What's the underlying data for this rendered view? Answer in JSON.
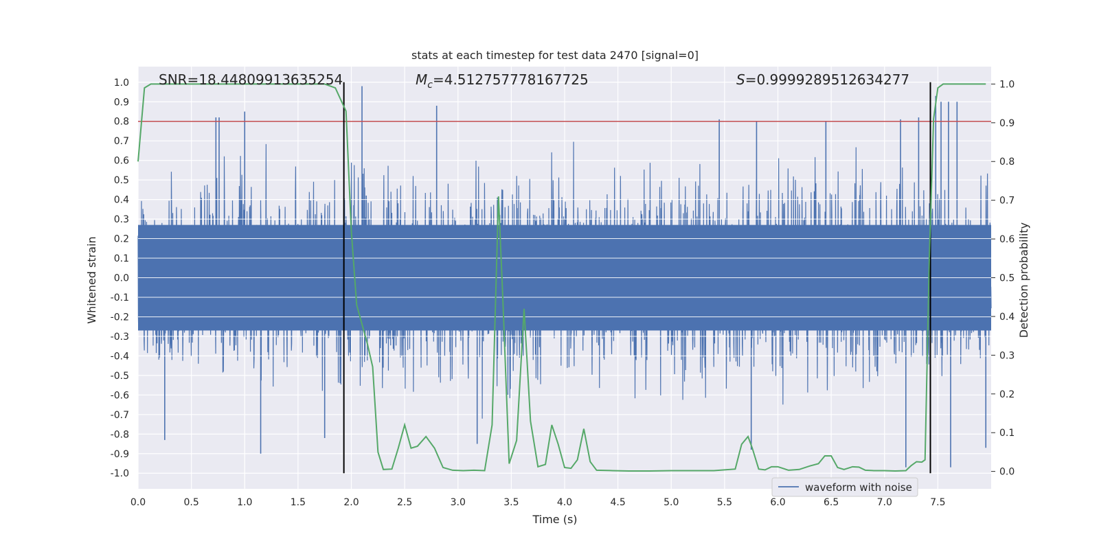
{
  "chart_data": {
    "type": "line",
    "title": "stats at each timestep for test data 2470 [signal=0]",
    "xlabel": "Time (s)",
    "ylabel_left": "Whitened strain",
    "ylabel_right": "Detection probability",
    "xlim": [
      0.0,
      8.0
    ],
    "ylim_left": [
      -1.08,
      1.08
    ],
    "ylim_right": [
      -0.045,
      1.045
    ],
    "x_ticks": [
      "0.0",
      "0.5",
      "1.0",
      "1.5",
      "2.0",
      "2.5",
      "3.0",
      "3.5",
      "4.0",
      "4.5",
      "5.0",
      "5.5",
      "6.0",
      "6.5",
      "7.0",
      "7.5"
    ],
    "y_ticks_left": [
      "1.0",
      "0.9",
      "0.8",
      "0.7",
      "0.6",
      "0.5",
      "0.4",
      "0.3",
      "0.2",
      "0.1",
      "0.0",
      "-0.1",
      "-0.2",
      "-0.3",
      "-0.4",
      "-0.5",
      "-0.6",
      "-0.7",
      "-0.8",
      "-0.9",
      "-1.0"
    ],
    "y_ticks_right": [
      "1.0",
      "0.9",
      "0.8",
      "0.7",
      "0.6",
      "0.5",
      "0.4",
      "0.3",
      "0.2",
      "0.1",
      "0.0"
    ],
    "grid": true,
    "legend": {
      "position": "bottom-right",
      "entries": [
        "waveform with noise"
      ]
    },
    "annotations": {
      "snr": "SNR=18.44809913635254",
      "mc_symbol": "M",
      "mc_sub": "c",
      "mc_value": "=4.512757778167725",
      "s_symbol": "S",
      "s_value": "=0.9999289512634277"
    },
    "threshold": {
      "axis": "left",
      "value": 0.8,
      "color": "#c44e52"
    },
    "vlines": [
      1.93,
      7.43
    ],
    "colors": {
      "waveform": "#4c72b0",
      "probability": "#55a868",
      "axes_bg": "#eaeaf2",
      "vline": "#000000"
    },
    "series": [
      {
        "name": "waveform with noise",
        "axis": "left",
        "summary": {
          "x_start": 0.0,
          "x_end": 8.0,
          "samples_approx": 8192,
          "typical_peak_amplitude": 0.55,
          "max": 0.98,
          "min": -0.98
        },
        "spikes": [
          [
            0.73,
            0.82
          ],
          [
            0.76,
            0.82
          ],
          [
            1.0,
            0.85
          ],
          [
            2.1,
            0.98
          ],
          [
            2.14,
            0.42
          ],
          [
            2.8,
            0.88
          ],
          [
            3.37,
            0.41
          ],
          [
            5.45,
            0.81
          ],
          [
            5.8,
            0.8
          ],
          [
            6.45,
            0.8
          ],
          [
            7.15,
            0.81
          ],
          [
            7.32,
            0.82
          ],
          [
            7.48,
            0.93
          ],
          [
            7.53,
            0.9
          ],
          [
            7.6,
            0.9
          ],
          [
            7.68,
            0.9
          ],
          [
            0.25,
            -0.83
          ],
          [
            1.15,
            -0.9
          ],
          [
            1.75,
            -0.82
          ],
          [
            3.18,
            -0.85
          ],
          [
            5.75,
            -0.88
          ],
          [
            7.2,
            -0.97
          ],
          [
            7.62,
            -0.97
          ],
          [
            7.95,
            -0.87
          ]
        ]
      },
      {
        "name": "",
        "axis": "right",
        "x": [
          0.0,
          0.06,
          0.12,
          0.3,
          0.6,
          0.9,
          1.2,
          1.5,
          1.7,
          1.75,
          1.85,
          1.9,
          1.95,
          2.0,
          2.05,
          2.1,
          2.15,
          2.2,
          2.25,
          2.3,
          2.38,
          2.44,
          2.5,
          2.56,
          2.62,
          2.7,
          2.78,
          2.86,
          2.95,
          3.05,
          3.15,
          3.25,
          3.32,
          3.38,
          3.42,
          3.48,
          3.55,
          3.62,
          3.68,
          3.75,
          3.82,
          3.88,
          3.94,
          4.0,
          4.06,
          4.12,
          4.18,
          4.24,
          4.3,
          4.45,
          4.6,
          4.8,
          5.0,
          5.2,
          5.4,
          5.6,
          5.66,
          5.72,
          5.76,
          5.82,
          5.88,
          5.94,
          6.0,
          6.1,
          6.2,
          6.3,
          6.38,
          6.44,
          6.5,
          6.56,
          6.62,
          6.7,
          6.76,
          6.82,
          6.9,
          7.0,
          7.1,
          7.2,
          7.25,
          7.3,
          7.35,
          7.38,
          7.42,
          7.46,
          7.5,
          7.55,
          7.6,
          7.7,
          7.8,
          7.95
        ],
        "y": [
          0.8,
          0.99,
          1.0,
          1.0,
          1.0,
          1.0,
          1.0,
          1.0,
          1.0,
          1.0,
          0.99,
          0.96,
          0.93,
          0.62,
          0.43,
          0.38,
          0.33,
          0.27,
          0.05,
          0.005,
          0.006,
          0.06,
          0.12,
          0.06,
          0.065,
          0.09,
          0.06,
          0.01,
          0.003,
          0.002,
          0.003,
          0.002,
          0.12,
          0.71,
          0.45,
          0.02,
          0.08,
          0.42,
          0.13,
          0.012,
          0.018,
          0.12,
          0.07,
          0.01,
          0.008,
          0.03,
          0.11,
          0.025,
          0.003,
          0.002,
          0.001,
          0.001,
          0.002,
          0.002,
          0.002,
          0.006,
          0.07,
          0.09,
          0.06,
          0.006,
          0.004,
          0.012,
          0.012,
          0.003,
          0.005,
          0.014,
          0.02,
          0.04,
          0.04,
          0.01,
          0.005,
          0.012,
          0.011,
          0.003,
          0.002,
          0.002,
          0.001,
          0.002,
          0.015,
          0.025,
          0.024,
          0.03,
          0.55,
          0.91,
          0.99,
          1.0,
          1.0,
          1.0,
          1.0,
          1.0
        ]
      }
    ]
  }
}
